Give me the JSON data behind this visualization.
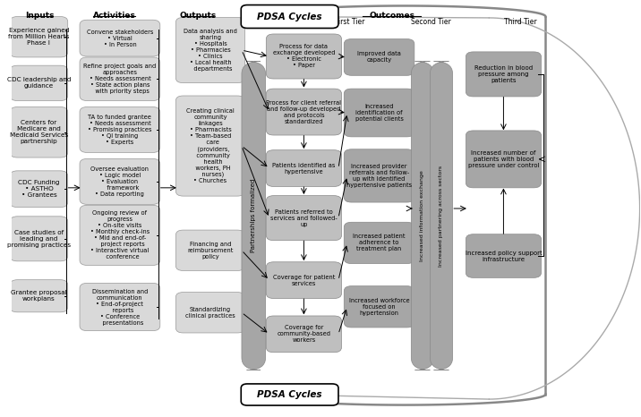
{
  "bg_color": "#ffffff",
  "box_color_light": "#d9d9d9",
  "box_color_medium": "#bfbfbf",
  "box_color_dark": "#a6a6a6",
  "text_color": "#000000",
  "inputs": [
    "Experience gained\nfrom Million Hearts\nPhase I",
    "CDC leadership and\nguidance",
    "Centers for\nMedicare and\nMedicaid Services\npartnership",
    "CDC Funding\n• ASTHO\n• Grantees",
    "Case studies of\nleading and\npromising practices",
    "Grantee proposal\nworkplans"
  ],
  "activities": [
    "Convene stakeholders\n• Virtual\n• In Person",
    "Refine project goals and\napproaches\n• Needs assessment\n• State action plans\n   with priority steps",
    "TA to funded grantee\n• Needs assessment\n• Promising practices\n• QI training\n• Experts",
    "Oversee evaluation\n• Logic model\n• Evaluation\n   framework\n• Data reporting",
    "Ongoing review of\nprogress\n• On-site visits\n• Monthly check-ins\n• Mid and end-of-\n   project reports\n• Interactive virtual\n   conference",
    "Dissemination and\ncommunication\n• End-of-project\n   reports\n• Conference\n   presentations"
  ],
  "outputs": [
    "Data analysis and\nsharing\n• Hospitals\n• Pharmacies\n• Clinics\n• Local health\n   departments",
    "Creating clinical\ncommunity\nlinkages\n• Pharmacists\n• Team-based\n   care\n   (providers,\n   community\n   health\n   workers, PH\n   nurses)\n• Churches",
    "Financing and\nreimbursement\npolicy",
    "Standardizing\nclinical practices"
  ],
  "first_tier": [
    "Process for data\nexchange developed\n• Electronic\n• Paper",
    "Process for client referral\nand follow-up developed\nand protocols\nstandardized",
    "Patients identified as\nhypertensive",
    "Patients referred to\nservices and followed-\nup",
    "Coverage for patient\nservices",
    "Coverage for\ncommunity-based\nworkers"
  ],
  "second_tier": [
    "Improved data\ncapacity",
    "Increased\nidentification of\npotential clients",
    "Increased provider\nreferrals and follow-\nup with identified\nhypertensive patients",
    "Increased patient\nadherence to\ntreatment plan",
    "Increased workforce\nfocused on\nhypertension"
  ],
  "third_tier": [
    "Reduction in blood\npressure among\npatients",
    "Increased number of\npatients with blood\npressure under control",
    "Increased policy support\ninfrastructure"
  ]
}
